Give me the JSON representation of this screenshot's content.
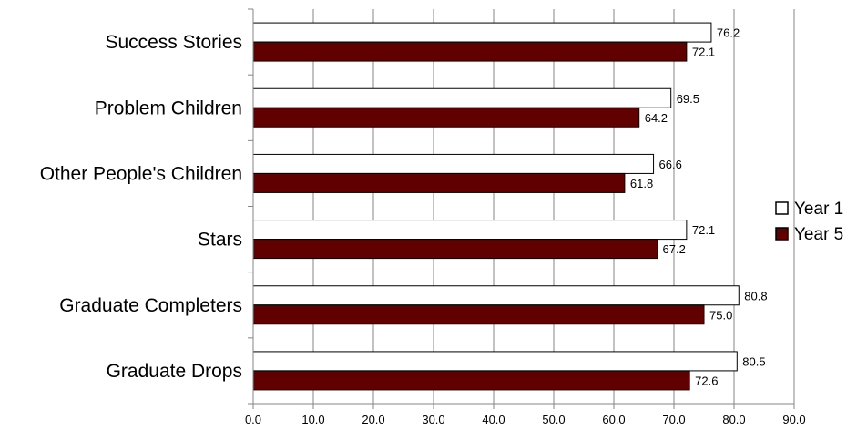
{
  "chart_data": {
    "type": "bar",
    "orientation": "horizontal",
    "categories": [
      "Success Stories",
      "Problem Children",
      "Other People's Children",
      "Stars",
      "Graduate Completers",
      "Graduate Drops"
    ],
    "series": [
      {
        "name": "Year 1",
        "values": [
          76.2,
          69.5,
          66.6,
          72.1,
          80.8,
          80.5
        ],
        "value_labels": [
          "76.2",
          "69.5",
          "66.6",
          "72.1",
          "80.8",
          "80.5"
        ],
        "color": "#ffffff",
        "stroke": "#000000"
      },
      {
        "name": "Year 5",
        "values": [
          72.1,
          64.2,
          61.8,
          67.2,
          75.0,
          72.6
        ],
        "value_labels": [
          "72.1",
          "64.2",
          "61.8",
          "67.2",
          "75.0",
          "72.6"
        ],
        "color": "#600000",
        "stroke": "#000000"
      }
    ],
    "xlim": [
      0,
      90
    ],
    "x_ticks": [
      "0.0",
      "10.0",
      "20.0",
      "30.0",
      "40.0",
      "50.0",
      "60.0",
      "70.0",
      "80.0",
      "90.0"
    ],
    "grid": true,
    "legend_position": "right",
    "title": "",
    "xlabel": "",
    "ylabel": ""
  }
}
